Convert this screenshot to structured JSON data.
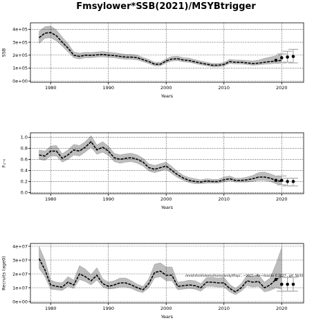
{
  "title": "Fmsylower*SSB(2021)/MSYBtrigger",
  "chart_data": [
    {
      "type": "line",
      "xlabel": "Years",
      "ylabel": "SSB",
      "xlim": [
        1976.5,
        2023.8
      ],
      "ylim": [
        -10000,
        450000
      ],
      "xticks": [
        1980,
        1990,
        2000,
        2010,
        2020
      ],
      "yticks": [
        0,
        100000,
        200000,
        300000,
        400000
      ],
      "ytick_labels": [
        "0e+00",
        "1e+05",
        "2e+05",
        "3e+05",
        "4e+05"
      ],
      "grid": true,
      "x": [
        1978,
        1979,
        1980,
        1981,
        1982,
        1983,
        1984,
        1985,
        1986,
        1987,
        1988,
        1989,
        1990,
        1991,
        1992,
        1993,
        1994,
        1995,
        1996,
        1997,
        1998,
        1999,
        2000,
        2001,
        2002,
        2003,
        2004,
        2005,
        2006,
        2007,
        2008,
        2009,
        2010,
        2011,
        2012,
        2013,
        2014,
        2015,
        2016,
        2017,
        2018,
        2019,
        2020
      ],
      "median": [
        335000,
        370000,
        375000,
        350000,
        300000,
        255000,
        200000,
        190000,
        200000,
        198000,
        202000,
        205000,
        200000,
        197000,
        190000,
        185000,
        185000,
        180000,
        165000,
        150000,
        130000,
        130000,
        155000,
        170000,
        172000,
        162000,
        158000,
        148000,
        138000,
        130000,
        122000,
        122000,
        128000,
        150000,
        145000,
        145000,
        140000,
        135000,
        138000,
        145000,
        150000,
        155000,
        160000
      ],
      "lower": [
        290000,
        330000,
        335000,
        310000,
        270000,
        225000,
        180000,
        170000,
        180000,
        180000,
        185000,
        187000,
        183000,
        180000,
        173000,
        168000,
        168000,
        163000,
        150000,
        135000,
        117000,
        117000,
        140000,
        155000,
        157000,
        148000,
        144000,
        135000,
        125000,
        118000,
        110000,
        110000,
        116000,
        136000,
        132000,
        132000,
        127000,
        122000,
        125000,
        130000,
        133000,
        136000,
        138000
      ],
      "upper": [
        385000,
        420000,
        425000,
        395000,
        340000,
        290000,
        225000,
        215000,
        222000,
        220000,
        224000,
        228000,
        222000,
        219000,
        212000,
        206000,
        206000,
        200000,
        182000,
        167000,
        145000,
        145000,
        172000,
        190000,
        192000,
        180000,
        177000,
        165000,
        154000,
        145000,
        136000,
        136000,
        143000,
        168000,
        162000,
        162000,
        158000,
        155000,
        162000,
        175000,
        185000,
        195000,
        210000
      ],
      "forecast_x": [
        2019,
        2020,
        2021,
        2022
      ],
      "forecast_median": [
        160000,
        180000,
        185000,
        190000
      ],
      "forecast_lower": [
        null,
        140000,
        145000,
        140000
      ],
      "forecast_upper": [
        null,
        210000,
        230000,
        245000
      ]
    },
    {
      "type": "line",
      "xlabel": "Years",
      "ylabel": "F₂–₆",
      "xlim": [
        1976.5,
        2023.8
      ],
      "ylim": [
        -0.02,
        1.08
      ],
      "xticks": [
        1980,
        1990,
        2000,
        2010,
        2020
      ],
      "yticks": [
        0.0,
        0.2,
        0.4,
        0.6,
        0.8,
        1.0
      ],
      "ytick_labels": [
        "0.0",
        "0.2",
        "0.4",
        "0.6",
        "0.8",
        "1.0"
      ],
      "grid": true,
      "x": [
        1978,
        1979,
        1980,
        1981,
        1982,
        1983,
        1984,
        1985,
        1986,
        1987,
        1988,
        1989,
        1990,
        1991,
        1992,
        1993,
        1994,
        1995,
        1996,
        1997,
        1998,
        1999,
        2000,
        2001,
        2002,
        2003,
        2004,
        2005,
        2006,
        2007,
        2008,
        2009,
        2010,
        2011,
        2012,
        2013,
        2014,
        2015,
        2016,
        2017,
        2018,
        2019,
        2020
      ],
      "median": [
        0.68,
        0.66,
        0.75,
        0.75,
        0.62,
        0.68,
        0.77,
        0.75,
        0.82,
        0.92,
        0.77,
        0.82,
        0.75,
        0.63,
        0.6,
        0.62,
        0.63,
        0.6,
        0.55,
        0.45,
        0.42,
        0.45,
        0.48,
        0.4,
        0.32,
        0.26,
        0.22,
        0.2,
        0.19,
        0.21,
        0.2,
        0.2,
        0.23,
        0.25,
        0.22,
        0.22,
        0.23,
        0.25,
        0.28,
        0.28,
        0.26,
        0.22,
        0.2
      ],
      "lower": [
        0.6,
        0.58,
        0.66,
        0.66,
        0.55,
        0.6,
        0.68,
        0.66,
        0.73,
        0.82,
        0.69,
        0.73,
        0.67,
        0.56,
        0.53,
        0.55,
        0.56,
        0.53,
        0.48,
        0.39,
        0.36,
        0.39,
        0.42,
        0.34,
        0.27,
        0.22,
        0.18,
        0.16,
        0.16,
        0.17,
        0.17,
        0.17,
        0.19,
        0.21,
        0.19,
        0.19,
        0.19,
        0.2,
        0.22,
        0.22,
        0.2,
        0.16,
        0.14
      ],
      "upper": [
        0.77,
        0.75,
        0.84,
        0.85,
        0.7,
        0.77,
        0.87,
        0.85,
        0.92,
        1.03,
        0.86,
        0.92,
        0.84,
        0.71,
        0.68,
        0.7,
        0.71,
        0.68,
        0.62,
        0.52,
        0.49,
        0.52,
        0.55,
        0.47,
        0.38,
        0.31,
        0.27,
        0.25,
        0.23,
        0.25,
        0.24,
        0.24,
        0.28,
        0.3,
        0.26,
        0.26,
        0.28,
        0.31,
        0.36,
        0.37,
        0.34,
        0.3,
        0.3
      ],
      "forecast_x": [
        2019,
        2020,
        2021,
        2022
      ],
      "forecast_median": [
        0.22,
        0.22,
        0.2,
        0.2
      ],
      "forecast_lower": [
        null,
        0.14,
        0.12,
        0.12
      ],
      "forecast_upper": [
        null,
        0.3,
        0.26,
        0.26
      ]
    },
    {
      "type": "line",
      "xlabel": "Years",
      "ylabel": "Recruits (age0)",
      "xlim": [
        1976.5,
        2023.8
      ],
      "ylim": [
        -1000000,
        42000000
      ],
      "xticks": [
        1980,
        1990,
        2000,
        2010,
        2020
      ],
      "yticks": [
        0,
        10000000,
        20000000,
        30000000,
        40000000
      ],
      "ytick_labels": [
        "0e+00",
        "1e+07",
        "2e+07",
        "3e+07",
        "4e+07"
      ],
      "grid": true,
      "annotation": "/mnt/nfs/nfsdemo/home/andy/Rlsp/...~2021~Rs~rlsasite 0.3627 , git: 5b33",
      "x": [
        1978,
        1979,
        1980,
        1981,
        1982,
        1983,
        1984,
        1985,
        1986,
        1987,
        1988,
        1989,
        1990,
        1991,
        1992,
        1993,
        1994,
        1995,
        1996,
        1997,
        1998,
        1999,
        2000,
        2001,
        2002,
        2003,
        2004,
        2005,
        2006,
        2007,
        2008,
        2009,
        2010,
        2011,
        2012,
        2013,
        2014,
        2015,
        2016,
        2017,
        2018,
        2019,
        2020
      ],
      "median": [
        31000000,
        23000000,
        12000000,
        11000000,
        10500000,
        14000000,
        12000000,
        20000000,
        18000000,
        15000000,
        19000000,
        13000000,
        11000000,
        12000000,
        13500000,
        13500000,
        12000000,
        10000000,
        8500000,
        13000000,
        21000000,
        22000000,
        19000000,
        19000000,
        11000000,
        11500000,
        12000000,
        11500000,
        10000000,
        14000000,
        14000000,
        13500000,
        13500000,
        9500000,
        7000000,
        10000000,
        15000000,
        14000000,
        14500000,
        10000000,
        12000000,
        16000000,
        18000000
      ],
      "lower": [
        24000000,
        18000000,
        9000000,
        8500000,
        8000000,
        11000000,
        9500000,
        16000000,
        14500000,
        12000000,
        15500000,
        10500000,
        9000000,
        9500000,
        10500000,
        10500000,
        9500000,
        7500000,
        6500000,
        10000000,
        17000000,
        18000000,
        15000000,
        15000000,
        8500000,
        9000000,
        9500000,
        9000000,
        7500000,
        11000000,
        11000000,
        10500000,
        10500000,
        7000000,
        5000000,
        7500000,
        11500000,
        10500000,
        11000000,
        7000000,
        8000000,
        10000000,
        9000000
      ],
      "upper": [
        40000000,
        30000000,
        15500000,
        14000000,
        13500000,
        18000000,
        15500000,
        26000000,
        23500000,
        19500000,
        24500000,
        16500000,
        14000000,
        15000000,
        17000000,
        17000000,
        15000000,
        12500000,
        11000000,
        16500000,
        27000000,
        28000000,
        25000000,
        25000000,
        14000000,
        14500000,
        15500000,
        15000000,
        13000000,
        17500000,
        17500000,
        17000000,
        17500000,
        12500000,
        9500000,
        13000000,
        19000000,
        18000000,
        19500000,
        14000000,
        17000000,
        27000000,
        39000000
      ],
      "forecast_x": [
        2019,
        2020,
        2021,
        2022
      ],
      "forecast_median": [
        16000000,
        12500000,
        12500000,
        12500000
      ],
      "forecast_lower": [
        null,
        7500000,
        7500000,
        7500000
      ],
      "forecast_upper": [
        null,
        17500000,
        17500000,
        17500000
      ]
    }
  ]
}
